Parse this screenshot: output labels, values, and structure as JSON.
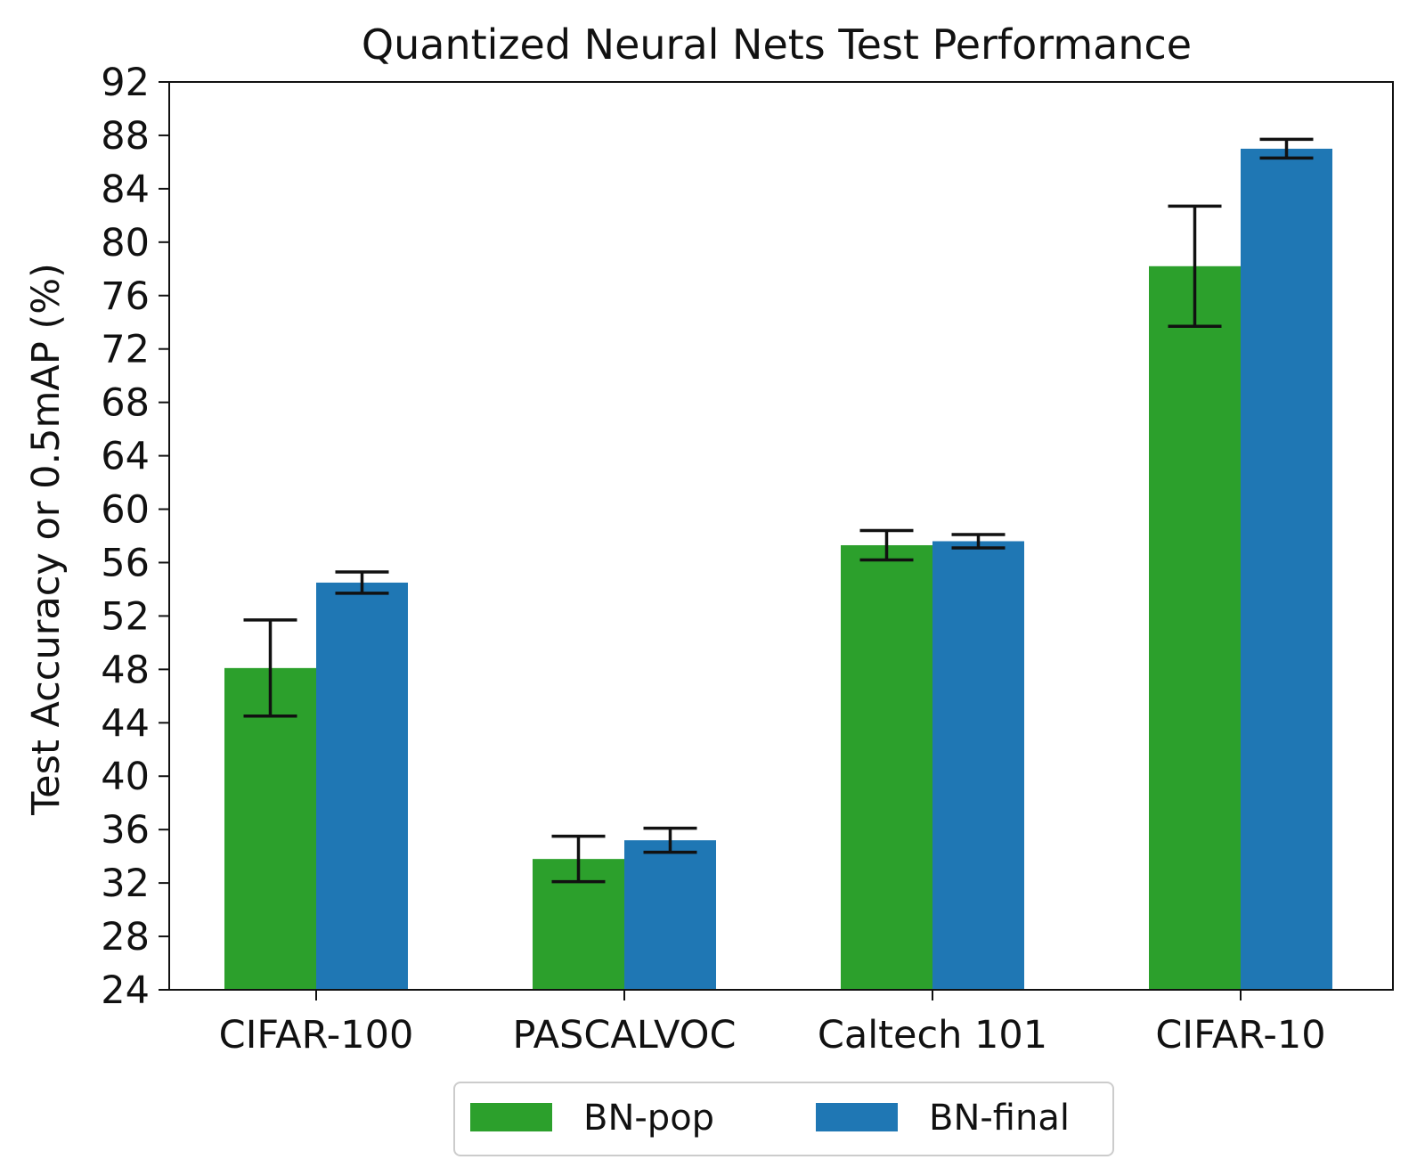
{
  "chart_data": {
    "type": "bar",
    "title": "Quantized Neural Nets Test Performance",
    "xlabel": "",
    "ylabel": "Test Accuracy or 0.5mAP (%)",
    "ylim": [
      24,
      92
    ],
    "yticks": [
      24,
      28,
      32,
      36,
      40,
      44,
      48,
      52,
      56,
      60,
      64,
      68,
      72,
      76,
      80,
      84,
      88,
      92
    ],
    "categories": [
      "CIFAR-100",
      "PASCALVOC",
      "Caltech 101",
      "CIFAR-10"
    ],
    "series": [
      {
        "name": "BN-pop",
        "color": "#2ca02c",
        "values": [
          48.1,
          33.8,
          57.3,
          78.2
        ],
        "error": [
          3.6,
          1.7,
          1.1,
          4.5
        ]
      },
      {
        "name": "BN-final",
        "color": "#1f77b4",
        "values": [
          54.5,
          35.2,
          57.6,
          87.0
        ],
        "error": [
          0.8,
          0.9,
          0.5,
          0.7
        ]
      }
    ],
    "grid": false,
    "legend_position": "bottom-center"
  }
}
